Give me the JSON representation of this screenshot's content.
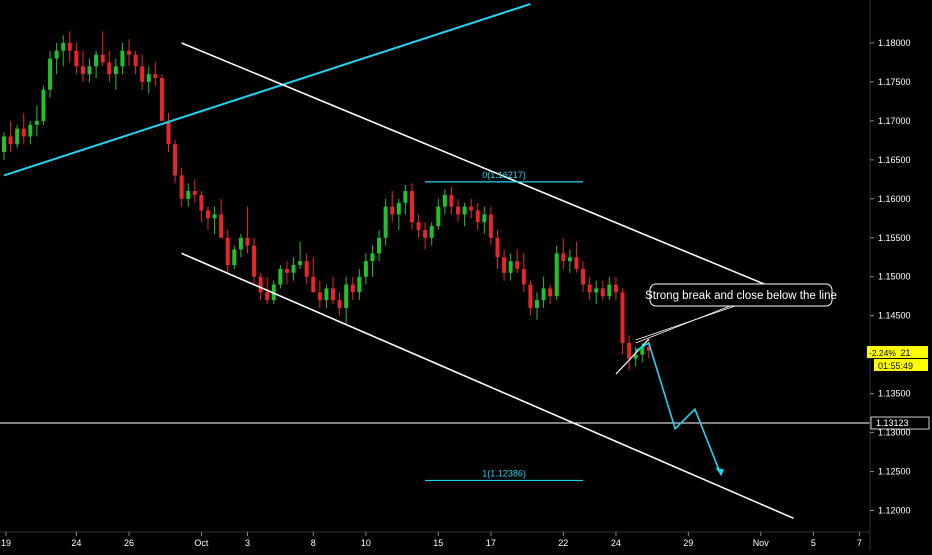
{
  "chart_data": {
    "type": "candlestick",
    "colors": {
      "background": "#000000",
      "up": "#22c02a",
      "down": "#e8262a",
      "channel": "#ffffff",
      "trendline": "#22d3ee",
      "fib": "#22d3ee",
      "forecast": "#22d3ee",
      "price_tag": "#ffff00",
      "text": "#ffffff"
    },
    "y_axis": {
      "min": 1.1175,
      "max": 1.185,
      "ticks": [
        "1.18000",
        "1.17500",
        "1.17000",
        "1.16500",
        "1.16000",
        "1.15500",
        "1.15000",
        "1.14500",
        "1.14000",
        "1.13500",
        "1.13000",
        "1.12500",
        "1.12000"
      ]
    },
    "x_axis": {
      "labels": [
        {
          "text": "19",
          "i": 0
        },
        {
          "text": "24",
          "i": 11
        },
        {
          "text": "26",
          "i": 19
        },
        {
          "text": "Oct",
          "i": 30
        },
        {
          "text": "3",
          "i": 37
        },
        {
          "text": "8",
          "i": 47
        },
        {
          "text": "10",
          "i": 55
        },
        {
          "text": "15",
          "i": 66
        },
        {
          "text": "17",
          "i": 74
        },
        {
          "text": "22",
          "i": 85
        },
        {
          "text": "24",
          "i": 93
        },
        {
          "text": "29",
          "i": 104
        },
        {
          "text": "Nov",
          "i": 115
        },
        {
          "text": "5",
          "i": 123
        },
        {
          "text": "7",
          "i": 130
        }
      ]
    },
    "candles_ohlc": [
      [
        1.166,
        1.1685,
        1.165,
        1.168
      ],
      [
        1.168,
        1.17,
        1.166,
        1.167
      ],
      [
        1.167,
        1.1695,
        1.1665,
        1.169
      ],
      [
        1.169,
        1.171,
        1.167,
        1.168
      ],
      [
        1.168,
        1.17,
        1.167,
        1.1695
      ],
      [
        1.1695,
        1.172,
        1.168,
        1.17
      ],
      [
        1.17,
        1.1745,
        1.1695,
        1.174
      ],
      [
        1.174,
        1.179,
        1.173,
        1.178
      ],
      [
        1.178,
        1.18,
        1.176,
        1.179
      ],
      [
        1.179,
        1.181,
        1.177,
        1.18
      ],
      [
        1.18,
        1.1815,
        1.1775,
        1.179
      ],
      [
        1.179,
        1.18,
        1.176,
        1.177
      ],
      [
        1.177,
        1.179,
        1.175,
        1.176
      ],
      [
        1.176,
        1.178,
        1.175,
        1.177
      ],
      [
        1.177,
        1.179,
        1.1755,
        1.1785
      ],
      [
        1.1785,
        1.1815,
        1.177,
        1.1775
      ],
      [
        1.1775,
        1.179,
        1.175,
        1.176
      ],
      [
        1.176,
        1.178,
        1.174,
        1.177
      ],
      [
        1.177,
        1.18,
        1.176,
        1.179
      ],
      [
        1.179,
        1.1805,
        1.177,
        1.1785
      ],
      [
        1.1785,
        1.179,
        1.176,
        1.177
      ],
      [
        1.177,
        1.1785,
        1.174,
        1.175
      ],
      [
        1.175,
        1.177,
        1.1735,
        1.176
      ],
      [
        1.176,
        1.1775,
        1.1745,
        1.1755
      ],
      [
        1.1755,
        1.176,
        1.172,
        1.17
      ],
      [
        1.17,
        1.171,
        1.166,
        1.167
      ],
      [
        1.167,
        1.1675,
        1.162,
        1.163
      ],
      [
        1.163,
        1.164,
        1.159,
        1.16
      ],
      [
        1.16,
        1.162,
        1.159,
        1.161
      ],
      [
        1.161,
        1.1625,
        1.1595,
        1.1605
      ],
      [
        1.1605,
        1.161,
        1.157,
        1.1585
      ],
      [
        1.1585,
        1.159,
        1.156,
        1.1575
      ],
      [
        1.1575,
        1.159,
        1.1555,
        1.158
      ],
      [
        1.158,
        1.16,
        1.156,
        1.155
      ],
      [
        1.155,
        1.156,
        1.1505,
        1.1515
      ],
      [
        1.1515,
        1.154,
        1.151,
        1.1535
      ],
      [
        1.1535,
        1.1555,
        1.1525,
        1.155
      ],
      [
        1.155,
        1.159,
        1.153,
        1.154
      ],
      [
        1.154,
        1.155,
        1.149,
        1.15
      ],
      [
        1.15,
        1.1505,
        1.147,
        1.148
      ],
      [
        1.148,
        1.15,
        1.1465,
        1.147
      ],
      [
        1.147,
        1.1495,
        1.1465,
        1.149
      ],
      [
        1.149,
        1.1515,
        1.1485,
        1.151
      ],
      [
        1.151,
        1.152,
        1.149,
        1.1505
      ],
      [
        1.1505,
        1.1525,
        1.1495,
        1.1515
      ],
      [
        1.1515,
        1.1545,
        1.151,
        1.152
      ],
      [
        1.152,
        1.153,
        1.149,
        1.15
      ],
      [
        1.15,
        1.1525,
        1.149,
        1.148
      ],
      [
        1.148,
        1.1495,
        1.146,
        1.147
      ],
      [
        1.147,
        1.149,
        1.146,
        1.1485
      ],
      [
        1.1485,
        1.15,
        1.1465,
        1.147
      ],
      [
        1.147,
        1.148,
        1.145,
        1.146
      ],
      [
        1.146,
        1.15,
        1.144,
        1.149
      ],
      [
        1.149,
        1.15,
        1.147,
        1.148
      ],
      [
        1.148,
        1.151,
        1.147,
        1.15
      ],
      [
        1.15,
        1.153,
        1.149,
        1.152
      ],
      [
        1.152,
        1.154,
        1.15,
        1.153
      ],
      [
        1.153,
        1.156,
        1.152,
        1.155
      ],
      [
        1.155,
        1.16,
        1.154,
        1.159
      ],
      [
        1.159,
        1.161,
        1.157,
        1.158
      ],
      [
        1.158,
        1.16,
        1.156,
        1.1595
      ],
      [
        1.1595,
        1.1618,
        1.158,
        1.161
      ],
      [
        1.161,
        1.162,
        1.156,
        1.157
      ],
      [
        1.157,
        1.158,
        1.155,
        1.156
      ],
      [
        1.156,
        1.157,
        1.1535,
        1.155
      ],
      [
        1.155,
        1.157,
        1.154,
        1.1565
      ],
      [
        1.1565,
        1.16,
        1.156,
        1.159
      ],
      [
        1.159,
        1.1612,
        1.158,
        1.1605
      ],
      [
        1.1605,
        1.1615,
        1.158,
        1.159
      ],
      [
        1.159,
        1.16,
        1.157,
        1.158
      ],
      [
        1.158,
        1.1595,
        1.1565,
        1.159
      ],
      [
        1.159,
        1.16,
        1.1575,
        1.1585
      ],
      [
        1.1585,
        1.1595,
        1.156,
        1.157
      ],
      [
        1.157,
        1.159,
        1.1555,
        1.158
      ],
      [
        1.158,
        1.159,
        1.154,
        1.155
      ],
      [
        1.155,
        1.156,
        1.151,
        1.1525
      ],
      [
        1.1525,
        1.1535,
        1.1495,
        1.1505
      ],
      [
        1.1505,
        1.153,
        1.1495,
        1.152
      ],
      [
        1.152,
        1.1535,
        1.1505,
        1.151
      ],
      [
        1.151,
        1.153,
        1.148,
        1.149
      ],
      [
        1.149,
        1.1495,
        1.145,
        1.146
      ],
      [
        1.146,
        1.148,
        1.1445,
        1.147
      ],
      [
        1.147,
        1.15,
        1.146,
        1.1485
      ],
      [
        1.1485,
        1.149,
        1.1465,
        1.1475
      ],
      [
        1.1475,
        1.154,
        1.147,
        1.153
      ],
      [
        1.153,
        1.155,
        1.151,
        1.152
      ],
      [
        1.152,
        1.1535,
        1.1505,
        1.1525
      ],
      [
        1.1525,
        1.1545,
        1.1505,
        1.151
      ],
      [
        1.151,
        1.152,
        1.148,
        1.149
      ],
      [
        1.149,
        1.15,
        1.147,
        1.148
      ],
      [
        1.148,
        1.1495,
        1.1465,
        1.1485
      ],
      [
        1.1485,
        1.1495,
        1.147,
        1.1475
      ],
      [
        1.1475,
        1.15,
        1.147,
        1.149
      ],
      [
        1.149,
        1.15,
        1.147,
        1.148
      ],
      [
        1.148,
        1.1485,
        1.14,
        1.1415
      ],
      [
        1.1415,
        1.1425,
        1.138,
        1.1395
      ],
      [
        1.1395,
        1.141,
        1.1385,
        1.14
      ],
      [
        1.14,
        1.1415,
        1.139,
        1.141
      ],
      [
        1.141,
        1.142,
        1.1395,
        1.1405
      ]
    ],
    "lines": {
      "channel_upper": [
        [
          27,
          1.18
        ],
        [
          120,
          1.1475
        ]
      ],
      "channel_lower": [
        [
          27,
          1.153
        ],
        [
          120,
          1.119
        ]
      ],
      "channel_mid_top": [
        [
          88,
          1.1625
        ],
        [
          91,
          1.1625
        ]
      ],
      "trendline": [
        [
          0,
          1.163
        ],
        [
          80,
          1.185
        ]
      ],
      "horizontal_level": 1.13123
    },
    "fib": [
      {
        "label": "0(1.16217)",
        "value": 1.16217,
        "x_from": 64,
        "x_to": 88
      },
      {
        "label": "1(1.12386)",
        "value": 1.12386,
        "x_from": 64,
        "x_to": 88
      }
    ],
    "forecast_path": [
      [
        96,
        1.1405
      ],
      [
        98,
        1.1415
      ],
      [
        102,
        1.1305
      ],
      [
        105,
        1.133
      ],
      [
        109,
        1.1245
      ]
    ],
    "annotation": {
      "text": "Strong break and close below the line",
      "points_to": [
        96,
        1.1415
      ]
    },
    "price_tag": {
      "change": "-2.24%",
      "price": "1.14021",
      "countdown": "01:55:49"
    },
    "level_tag": "1.13123"
  }
}
